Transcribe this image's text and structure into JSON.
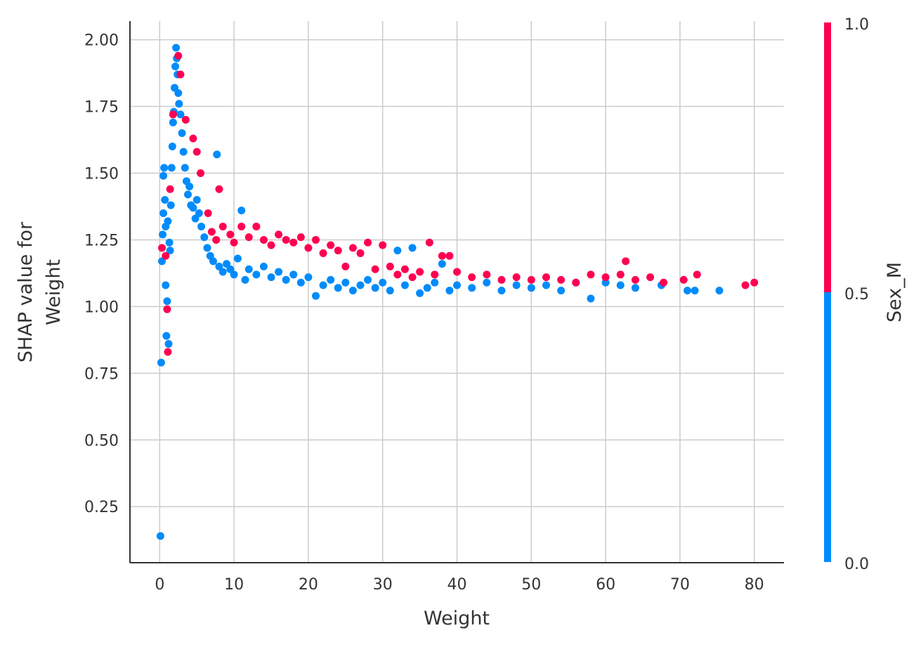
{
  "chart_data": {
    "type": "scatter",
    "title": "",
    "xlabel": "Weight",
    "ylabel_lines": [
      "SHAP value for",
      "Weight"
    ],
    "xlim": [
      -4,
      84
    ],
    "ylim": [
      0.04,
      2.07
    ],
    "xticks": [
      0,
      10,
      20,
      30,
      40,
      50,
      60,
      70,
      80
    ],
    "yticks": [
      0.25,
      0.5,
      0.75,
      1.0,
      1.25,
      1.5,
      1.75,
      2.0
    ],
    "xtick_labels": [
      "0",
      "10",
      "20",
      "30",
      "40",
      "50",
      "60",
      "70",
      "80"
    ],
    "ytick_labels": [
      "0.25",
      "0.50",
      "0.75",
      "1.00",
      "1.25",
      "1.50",
      "1.75",
      "2.00"
    ],
    "grid": true,
    "colorbar": {
      "label": "Sex_M",
      "range": [
        0.0,
        1.0
      ],
      "tick_labels": [
        "0.0",
        "0.5",
        "1.0"
      ],
      "low_color": "#008bfb",
      "high_color": "#ff0051"
    },
    "colors": {
      "low": "#008bfb",
      "high": "#ff0051",
      "grid": "#cccccc",
      "axis": "#333333"
    },
    "series": [
      {
        "name": "Sex_M = 0",
        "color": "#008bfb",
        "points": [
          [
            0.1,
            0.14
          ],
          [
            0.2,
            0.79
          ],
          [
            0.3,
            1.17
          ],
          [
            0.4,
            1.27
          ],
          [
            0.5,
            1.35
          ],
          [
            0.5,
            1.49
          ],
          [
            0.6,
            1.52
          ],
          [
            0.7,
            1.4
          ],
          [
            0.8,
            1.3
          ],
          [
            0.8,
            1.08
          ],
          [
            0.9,
            0.89
          ],
          [
            1.0,
            1.02
          ],
          [
            1.1,
            1.32
          ],
          [
            1.2,
            0.86
          ],
          [
            1.3,
            1.24
          ],
          [
            1.4,
            1.21
          ],
          [
            1.5,
            1.38
          ],
          [
            1.6,
            1.52
          ],
          [
            1.7,
            1.6
          ],
          [
            1.8,
            1.69
          ],
          [
            1.9,
            1.73
          ],
          [
            2.0,
            1.82
          ],
          [
            2.1,
            1.9
          ],
          [
            2.2,
            1.97
          ],
          [
            2.3,
            1.93
          ],
          [
            2.4,
            1.87
          ],
          [
            2.5,
            1.8
          ],
          [
            2.6,
            1.76
          ],
          [
            2.8,
            1.72
          ],
          [
            3.0,
            1.65
          ],
          [
            3.2,
            1.58
          ],
          [
            3.4,
            1.52
          ],
          [
            3.6,
            1.47
          ],
          [
            3.8,
            1.42
          ],
          [
            4.0,
            1.45
          ],
          [
            4.2,
            1.38
          ],
          [
            4.5,
            1.37
          ],
          [
            4.8,
            1.33
          ],
          [
            5.0,
            1.4
          ],
          [
            5.3,
            1.35
          ],
          [
            5.6,
            1.3
          ],
          [
            6.0,
            1.26
          ],
          [
            6.4,
            1.22
          ],
          [
            6.8,
            1.19
          ],
          [
            7.2,
            1.17
          ],
          [
            7.7,
            1.57
          ],
          [
            8.0,
            1.15
          ],
          [
            8.5,
            1.13
          ],
          [
            9.0,
            1.16
          ],
          [
            9.5,
            1.14
          ],
          [
            10.0,
            1.12
          ],
          [
            10.5,
            1.18
          ],
          [
            11.0,
            1.36
          ],
          [
            11.5,
            1.1
          ],
          [
            12.0,
            1.14
          ],
          [
            13.0,
            1.12
          ],
          [
            14.0,
            1.15
          ],
          [
            15.0,
            1.11
          ],
          [
            16.0,
            1.13
          ],
          [
            17.0,
            1.1
          ],
          [
            18.0,
            1.12
          ],
          [
            19.0,
            1.09
          ],
          [
            20.0,
            1.11
          ],
          [
            21.0,
            1.04
          ],
          [
            22.0,
            1.08
          ],
          [
            23.0,
            1.1
          ],
          [
            24.0,
            1.07
          ],
          [
            25.0,
            1.09
          ],
          [
            26.0,
            1.06
          ],
          [
            27.0,
            1.08
          ],
          [
            28.0,
            1.1
          ],
          [
            29.0,
            1.07
          ],
          [
            30.0,
            1.09
          ],
          [
            31.0,
            1.06
          ],
          [
            32.0,
            1.21
          ],
          [
            33.0,
            1.08
          ],
          [
            34.0,
            1.22
          ],
          [
            35.0,
            1.05
          ],
          [
            36.0,
            1.07
          ],
          [
            37.0,
            1.09
          ],
          [
            38.0,
            1.16
          ],
          [
            39.0,
            1.06
          ],
          [
            40.0,
            1.08
          ],
          [
            42.0,
            1.07
          ],
          [
            44.0,
            1.09
          ],
          [
            46.0,
            1.06
          ],
          [
            48.0,
            1.08
          ],
          [
            50.0,
            1.07
          ],
          [
            52.0,
            1.08
          ],
          [
            54.0,
            1.06
          ],
          [
            56.0,
            1.09
          ],
          [
            58.0,
            1.03
          ],
          [
            60.0,
            1.09
          ],
          [
            62.0,
            1.08
          ],
          [
            64.0,
            1.07
          ],
          [
            67.5,
            1.08
          ],
          [
            71.0,
            1.06
          ],
          [
            72.0,
            1.06
          ],
          [
            75.3,
            1.06
          ]
        ]
      },
      {
        "name": "Sex_M = 1",
        "color": "#ff0051",
        "points": [
          [
            0.3,
            1.22
          ],
          [
            0.8,
            1.19
          ],
          [
            1.0,
            0.99
          ],
          [
            1.1,
            0.83
          ],
          [
            1.4,
            1.44
          ],
          [
            1.8,
            1.72
          ],
          [
            2.5,
            1.94
          ],
          [
            2.8,
            1.87
          ],
          [
            3.5,
            1.7
          ],
          [
            4.5,
            1.63
          ],
          [
            5.0,
            1.58
          ],
          [
            5.5,
            1.5
          ],
          [
            6.5,
            1.35
          ],
          [
            7.0,
            1.28
          ],
          [
            7.6,
            1.25
          ],
          [
            8.0,
            1.44
          ],
          [
            8.5,
            1.3
          ],
          [
            9.5,
            1.27
          ],
          [
            10.0,
            1.24
          ],
          [
            11.0,
            1.3
          ],
          [
            12.0,
            1.26
          ],
          [
            13.0,
            1.3
          ],
          [
            14.0,
            1.25
          ],
          [
            15.0,
            1.23
          ],
          [
            16.0,
            1.27
          ],
          [
            17.0,
            1.25
          ],
          [
            18.0,
            1.24
          ],
          [
            19.0,
            1.26
          ],
          [
            20.0,
            1.22
          ],
          [
            21.0,
            1.25
          ],
          [
            22.0,
            1.2
          ],
          [
            23.0,
            1.23
          ],
          [
            24.0,
            1.21
          ],
          [
            25.0,
            1.15
          ],
          [
            26.0,
            1.22
          ],
          [
            27.0,
            1.2
          ],
          [
            28.0,
            1.24
          ],
          [
            29.0,
            1.14
          ],
          [
            30.0,
            1.23
          ],
          [
            31.0,
            1.15
          ],
          [
            32.0,
            1.12
          ],
          [
            33.0,
            1.14
          ],
          [
            34.0,
            1.11
          ],
          [
            35.0,
            1.13
          ],
          [
            36.3,
            1.24
          ],
          [
            37.0,
            1.12
          ],
          [
            38.0,
            1.19
          ],
          [
            39.0,
            1.19
          ],
          [
            40.0,
            1.13
          ],
          [
            42.0,
            1.11
          ],
          [
            44.0,
            1.12
          ],
          [
            46.0,
            1.1
          ],
          [
            48.0,
            1.11
          ],
          [
            50.0,
            1.1
          ],
          [
            52.0,
            1.11
          ],
          [
            54.0,
            1.1
          ],
          [
            56.0,
            1.09
          ],
          [
            58.0,
            1.12
          ],
          [
            60.0,
            1.11
          ],
          [
            62.0,
            1.12
          ],
          [
            62.7,
            1.17
          ],
          [
            64.0,
            1.1
          ],
          [
            66.0,
            1.11
          ],
          [
            67.8,
            1.09
          ],
          [
            70.5,
            1.1
          ],
          [
            72.3,
            1.12
          ],
          [
            78.8,
            1.08
          ],
          [
            80.0,
            1.09
          ]
        ]
      }
    ]
  }
}
